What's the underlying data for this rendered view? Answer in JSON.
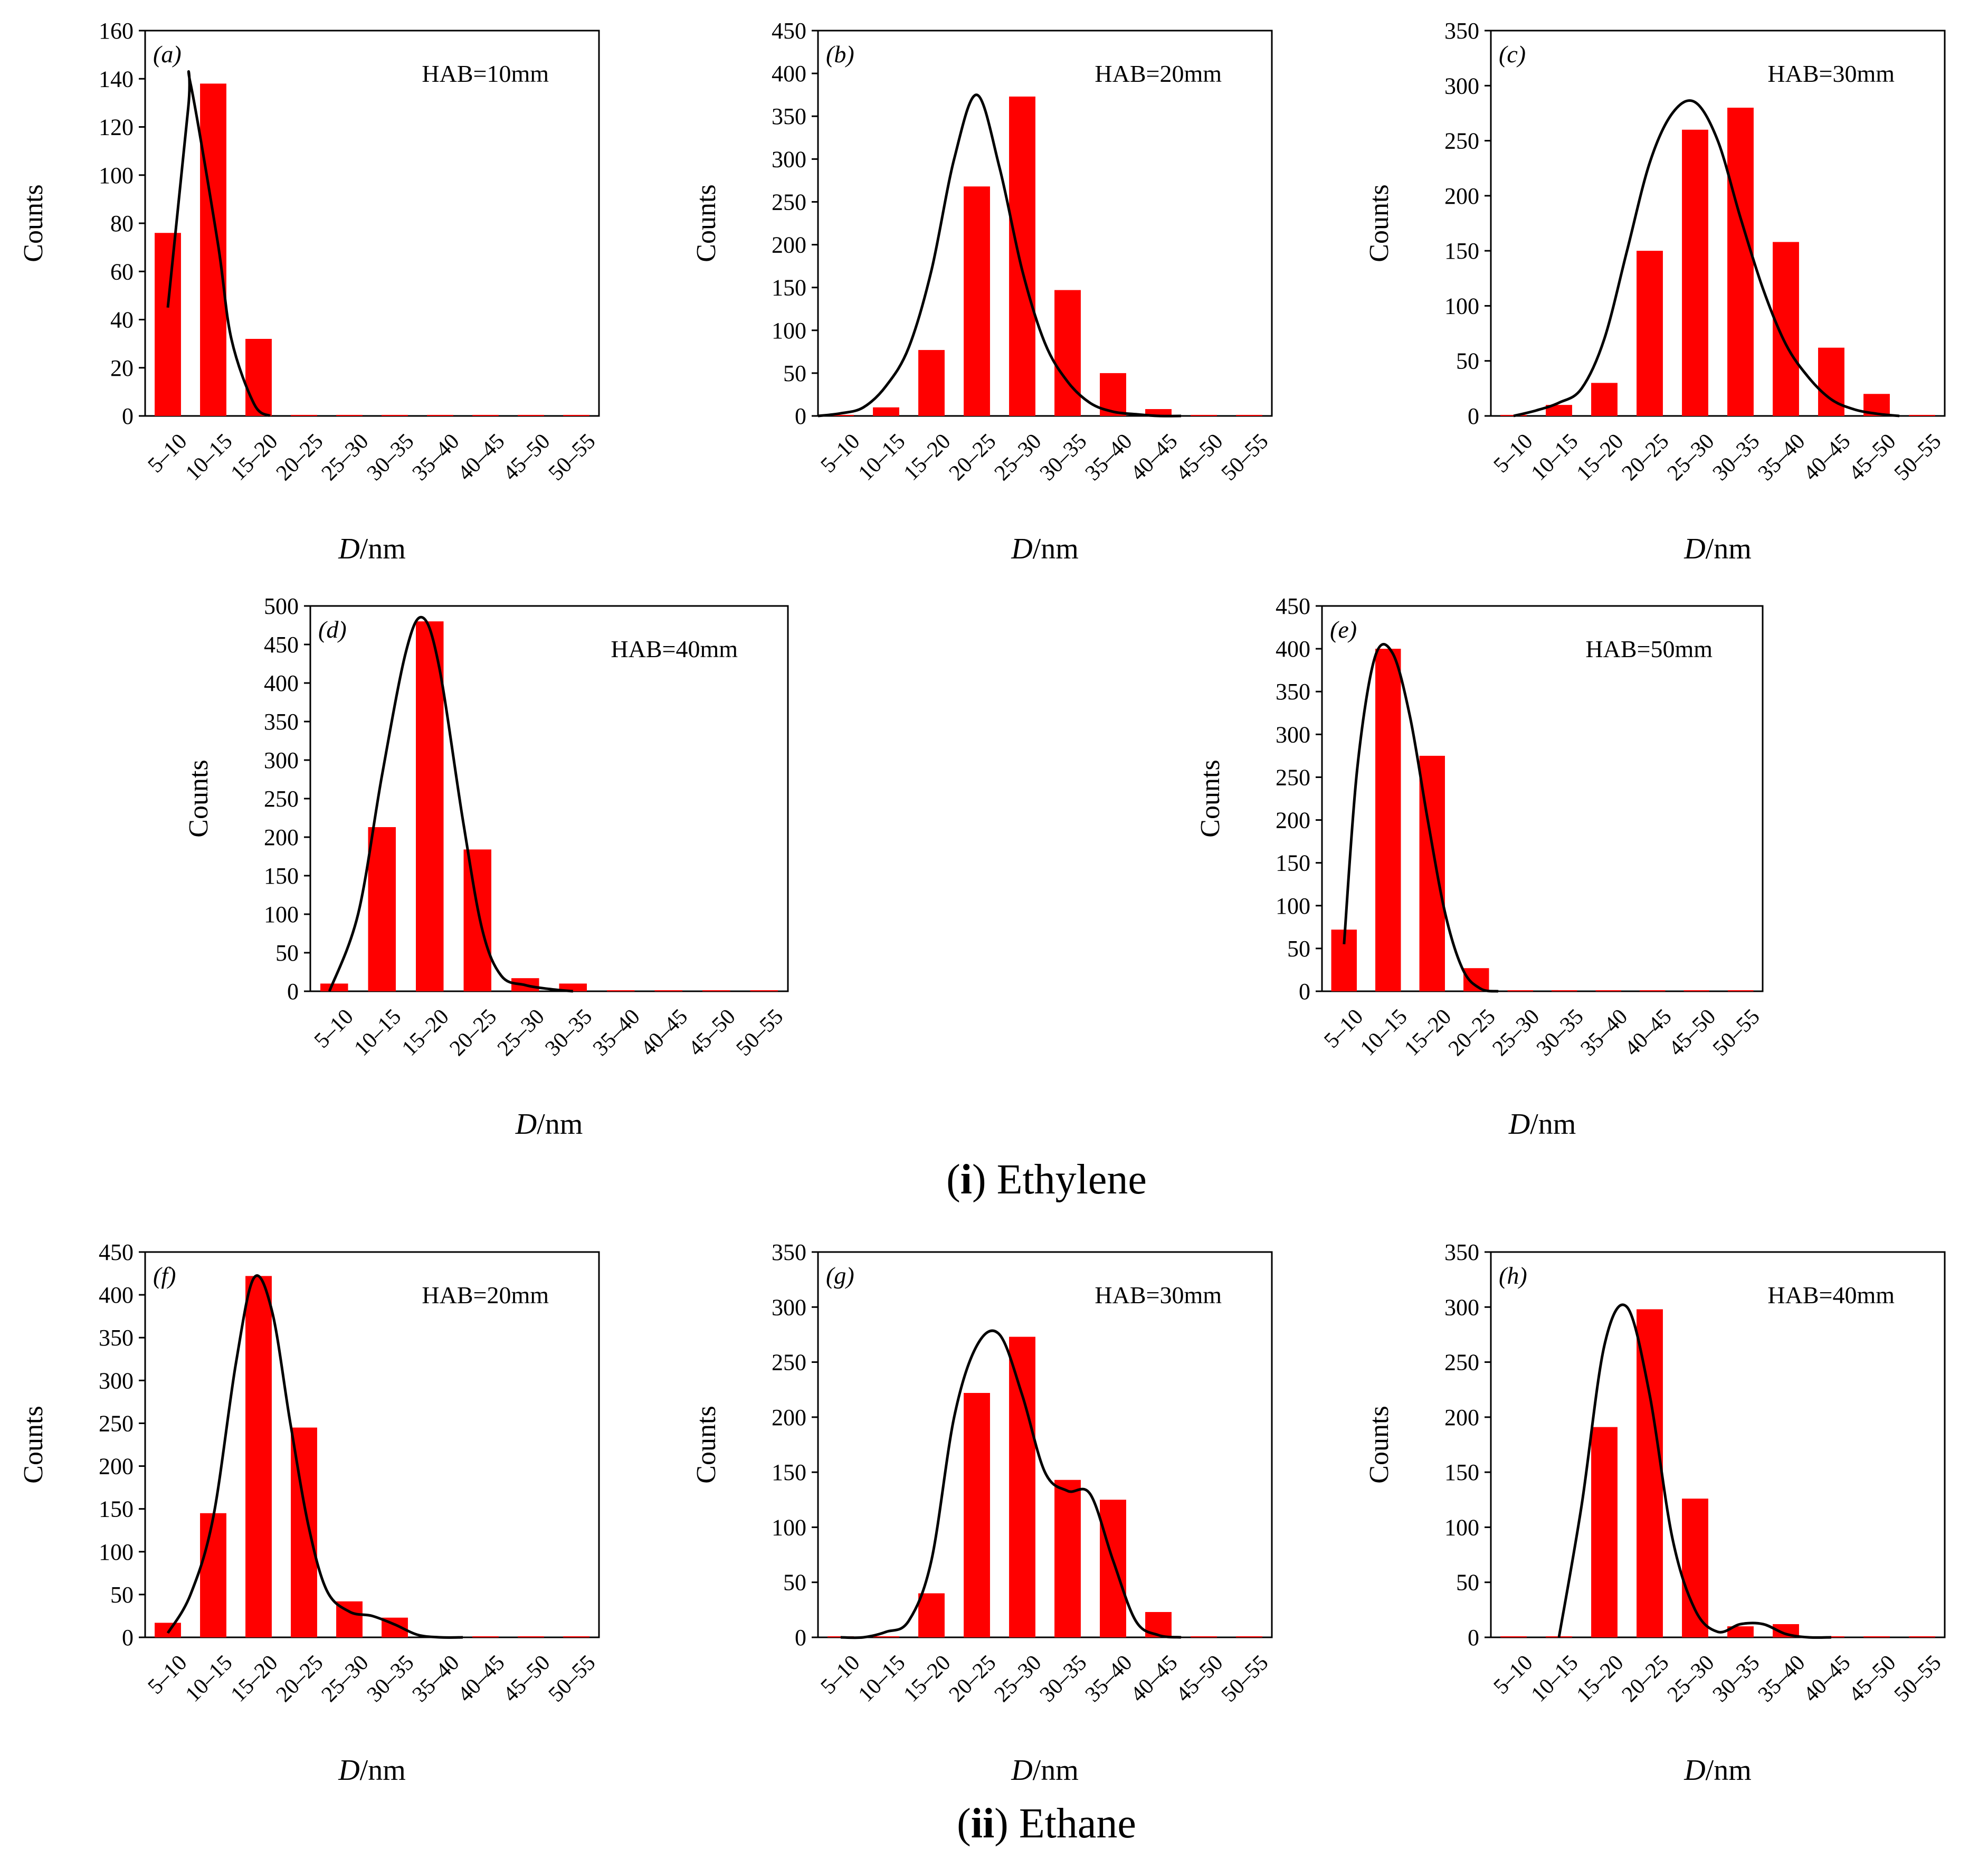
{
  "figure": {
    "categories": [
      "5–10",
      "10–15",
      "15–20",
      "20–25",
      "25–30",
      "30–35",
      "35–40",
      "40–45",
      "45–50",
      "50–55"
    ],
    "bar_color": "#ff0000",
    "curve_color": "#000000",
    "captions": [
      {
        "label": "i",
        "text": "Ethylene"
      },
      {
        "label": "ii",
        "text": "Ethane"
      }
    ]
  },
  "chart_data": [
    {
      "type": "bar",
      "panel": "(a)",
      "annotation": "HAB=10mm",
      "xlabel_italic": "D",
      "xlabel_rest": "/nm",
      "ylabel": "Counts",
      "categories": [
        "5–10",
        "10–15",
        "15–20",
        "20–25",
        "25–30",
        "30–35",
        "35–40",
        "40–45",
        "45–50",
        "50–55"
      ],
      "values": [
        76,
        138,
        32,
        0,
        0,
        0,
        0,
        0,
        0,
        0
      ],
      "ylim": [
        0,
        160
      ],
      "yticks": [
        0,
        20,
        40,
        60,
        80,
        100,
        120,
        140,
        160
      ],
      "curve": {
        "x": [
          0.5,
          0.95,
          1.0,
          1.6,
          1.9,
          2.4,
          2.75
        ],
        "y": [
          45,
          128,
          138,
          72,
          32,
          5,
          0
        ]
      }
    },
    {
      "type": "bar",
      "panel": "(b)",
      "annotation": "HAB=20mm",
      "xlabel_italic": "D",
      "xlabel_rest": "/nm",
      "ylabel": "Counts",
      "categories": [
        "5–10",
        "10–15",
        "15–20",
        "20–25",
        "25–30",
        "30–35",
        "35–40",
        "40–45",
        "45–50",
        "50–55"
      ],
      "values": [
        0,
        10,
        77,
        268,
        373,
        147,
        50,
        8,
        0,
        0
      ],
      "ylim": [
        0,
        450
      ],
      "yticks": [
        0,
        50,
        100,
        150,
        200,
        250,
        300,
        350,
        400,
        450
      ],
      "curve": {
        "x": [
          0,
          0.5,
          1.0,
          1.5,
          2.0,
          2.5,
          3.0,
          3.5,
          4.0,
          4.5,
          5.0,
          5.5,
          6.0,
          6.5,
          7.0,
          7.5,
          8.0
        ],
        "y": [
          0,
          3,
          10,
          35,
          80,
          170,
          300,
          375,
          290,
          170,
          85,
          40,
          15,
          5,
          2,
          0,
          0
        ]
      }
    },
    {
      "type": "bar",
      "panel": "(c)",
      "annotation": "HAB=30mm",
      "xlabel_italic": "D",
      "xlabel_rest": "/nm",
      "ylabel": "Counts",
      "categories": [
        "5–10",
        "10–15",
        "15–20",
        "20–25",
        "25–30",
        "30–35",
        "35–40",
        "40–45",
        "45–50",
        "50–55"
      ],
      "values": [
        0,
        10,
        30,
        150,
        260,
        280,
        158,
        62,
        20,
        0
      ],
      "ylim": [
        0,
        350
      ],
      "yticks": [
        0,
        50,
        100,
        150,
        200,
        250,
        300,
        350
      ],
      "curve": {
        "x": [
          0.5,
          1.0,
          1.5,
          2.0,
          2.5,
          3.0,
          3.5,
          4.0,
          4.5,
          5.0,
          5.5,
          6.0,
          6.5,
          7.0,
          7.5,
          8.0,
          8.5,
          9.0
        ],
        "y": [
          0,
          5,
          12,
          25,
          70,
          150,
          230,
          275,
          285,
          250,
          180,
          115,
          65,
          35,
          15,
          6,
          2,
          0
        ]
      }
    },
    {
      "type": "bar",
      "panel": "(d)",
      "annotation": "HAB=40mm",
      "xlabel_italic": "D",
      "xlabel_rest": "/nm",
      "ylabel": "Counts",
      "categories": [
        "5–10",
        "10–15",
        "15–20",
        "20–25",
        "25–30",
        "30–35",
        "35–40",
        "40–45",
        "45–50",
        "50–55"
      ],
      "values": [
        10,
        213,
        480,
        184,
        17,
        10,
        0,
        0,
        0,
        0
      ],
      "ylim": [
        0,
        500
      ],
      "yticks": [
        0,
        50,
        100,
        150,
        200,
        250,
        300,
        350,
        400,
        450,
        500
      ],
      "curve": {
        "x": [
          0.4,
          1.0,
          1.5,
          2.0,
          2.35,
          2.7,
          3.2,
          3.6,
          4.0,
          4.5,
          5.0,
          5.5
        ],
        "y": [
          0,
          100,
          280,
          440,
          485,
          420,
          220,
          80,
          20,
          8,
          3,
          0
        ]
      }
    },
    {
      "type": "bar",
      "panel": "(e)",
      "annotation": "HAB=50mm",
      "xlabel_italic": "D",
      "xlabel_rest": "/nm",
      "ylabel": "Counts",
      "categories": [
        "5–10",
        "10–15",
        "15–20",
        "20–25",
        "25–30",
        "30–35",
        "35–40",
        "40–45",
        "45–50",
        "50–55"
      ],
      "values": [
        72,
        400,
        275,
        27,
        0,
        0,
        0,
        0,
        0,
        0
      ],
      "ylim": [
        0,
        450
      ],
      "yticks": [
        0,
        50,
        100,
        150,
        200,
        250,
        300,
        350,
        400,
        450
      ],
      "curve": {
        "x": [
          0.5,
          0.8,
          1.2,
          1.6,
          2.0,
          2.4,
          2.8,
          3.2,
          3.6,
          4.0
        ],
        "y": [
          55,
          260,
          390,
          395,
          320,
          200,
          90,
          25,
          3,
          0
        ]
      }
    },
    {
      "type": "bar",
      "panel": "(f)",
      "annotation": "HAB=20mm",
      "xlabel_italic": "D",
      "xlabel_rest": "/nm",
      "ylabel": "Counts",
      "categories": [
        "5–10",
        "10–15",
        "15–20",
        "20–25",
        "25–30",
        "30–35",
        "35–40",
        "40–45",
        "45–50",
        "50–55"
      ],
      "values": [
        17,
        145,
        422,
        245,
        42,
        23,
        0,
        0,
        0,
        0
      ],
      "ylim": [
        0,
        450
      ],
      "yticks": [
        0,
        50,
        100,
        150,
        200,
        250,
        300,
        350,
        400,
        450
      ],
      "curve": {
        "x": [
          0.5,
          1.0,
          1.5,
          2.0,
          2.4,
          2.8,
          3.2,
          3.6,
          4.0,
          4.5,
          5.0,
          5.5,
          6.0,
          6.5,
          7.0
        ],
        "y": [
          5,
          50,
          140,
          320,
          420,
          380,
          250,
          130,
          55,
          30,
          25,
          15,
          3,
          0,
          0
        ]
      }
    },
    {
      "type": "bar",
      "panel": "(g)",
      "annotation": "HAB=30mm",
      "xlabel_italic": "D",
      "xlabel_rest": "/nm",
      "ylabel": "Counts",
      "categories": [
        "5–10",
        "10–15",
        "15–20",
        "20–25",
        "25–30",
        "30–35",
        "35–40",
        "40–45",
        "45–50",
        "50–55"
      ],
      "values": [
        0,
        0,
        40,
        222,
        273,
        143,
        125,
        23,
        0,
        0
      ],
      "ylim": [
        0,
        350
      ],
      "yticks": [
        0,
        50,
        100,
        150,
        200,
        250,
        300,
        350
      ],
      "curve": {
        "x": [
          0.5,
          1.0,
          1.5,
          2.0,
          2.5,
          3.0,
          3.5,
          4.0,
          4.5,
          5.0,
          5.5,
          6.0,
          6.5,
          7.0,
          7.5,
          8.0
        ],
        "y": [
          0,
          0,
          5,
          15,
          70,
          200,
          265,
          275,
          220,
          150,
          133,
          130,
          70,
          15,
          2,
          0
        ]
      }
    },
    {
      "type": "bar",
      "panel": "(h)",
      "annotation": "HAB=40mm",
      "xlabel_italic": "D",
      "xlabel_rest": "/nm",
      "ylabel": "Counts",
      "categories": [
        "5–10",
        "10–15",
        "15–20",
        "20–25",
        "25–30",
        "30–35",
        "35–40",
        "40–45",
        "45–50",
        "50–55"
      ],
      "values": [
        0,
        0,
        191,
        298,
        126,
        10,
        12,
        0,
        0,
        0
      ],
      "ylim": [
        0,
        350
      ],
      "yticks": [
        0,
        50,
        100,
        150,
        200,
        250,
        300,
        350
      ],
      "curve": {
        "x": [
          1.5,
          2.0,
          2.5,
          3.0,
          3.5,
          4.0,
          4.5,
          5.0,
          5.5,
          6.0,
          6.5,
          7.0,
          7.5
        ],
        "y": [
          0,
          120,
          265,
          300,
          220,
          90,
          25,
          5,
          12,
          12,
          3,
          0,
          0
        ]
      }
    }
  ]
}
